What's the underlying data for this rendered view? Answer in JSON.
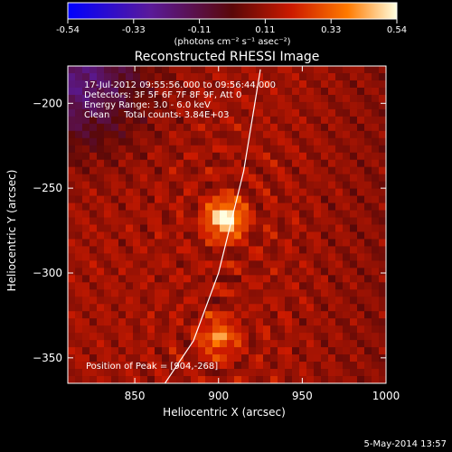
{
  "chart_data": {
    "type": "heatmap",
    "title": "Reconstructed RHESSI Image",
    "xlabel": "Heliocentric X (arcsec)",
    "ylabel": "Heliocentric Y (arcsec)",
    "xlim": [
      810,
      1000
    ],
    "ylim": [
      -365,
      -178
    ],
    "x_ticks": [
      850,
      900,
      950,
      1000
    ],
    "y_ticks": [
      -200,
      -250,
      -300,
      -350
    ],
    "colorbar": {
      "range": [
        -0.54,
        0.54
      ],
      "ticks": [
        "-0.54",
        "-0.33",
        "-0.11",
        "0.11",
        "0.33",
        "0.54"
      ],
      "label": "(photons cm⁻² s⁻¹ asec⁻²)"
    },
    "info_lines": [
      "17-Jul-2012 09:55:56.000 to 09:56:44.000",
      "Detectors: 3F 5F 6F 7F 8F 9F, Att 0",
      "Energy Range: 3.0 - 6.0 keV",
      "Clean     Total counts: 3.84E+03"
    ],
    "peak": {
      "text": "Position of Peak = [904,-268]",
      "x": 904,
      "y": -268
    },
    "sources": [
      {
        "x": 904,
        "y": -268,
        "amplitude": 0.54
      },
      {
        "x": 900,
        "y": -338,
        "amplitude": 0.3
      }
    ],
    "limb_points": [
      [
        925,
        -180
      ],
      [
        915,
        -240
      ],
      [
        900,
        -300
      ],
      [
        885,
        -340
      ],
      [
        868,
        -365
      ]
    ]
  },
  "footer": {
    "date": "5-May-2014 13:57"
  },
  "colors": {
    "background": "#000000",
    "text": "#ffffff",
    "limb": "#ffffff"
  }
}
